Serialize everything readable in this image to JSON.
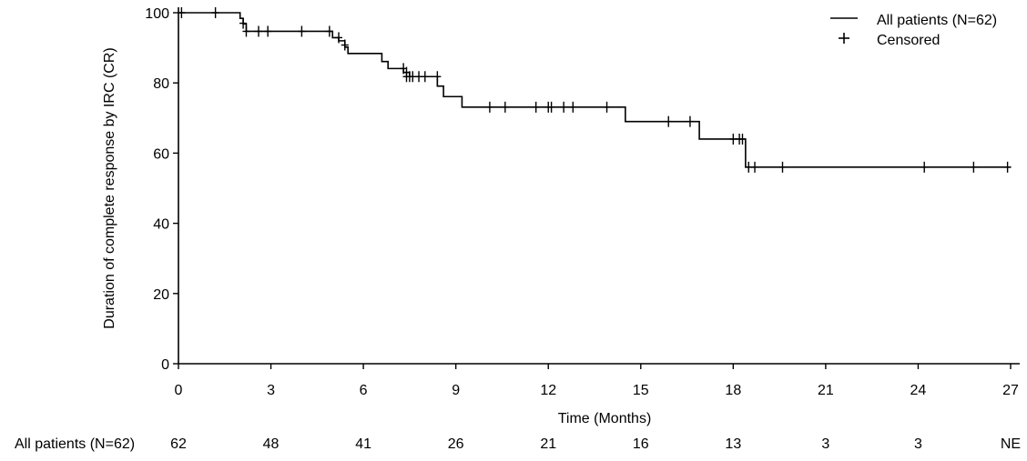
{
  "chart_data": {
    "type": "line",
    "subtype": "kaplan-meier",
    "title": "",
    "xlabel": "Time (Months)",
    "ylabel": "Duration of complete response by IRC (CR)",
    "xlim": [
      0,
      27
    ],
    "ylim": [
      0,
      100
    ],
    "xticks": [
      "0",
      "3",
      "6",
      "9",
      "12",
      "15",
      "18",
      "21",
      "24",
      "27"
    ],
    "yticks": [
      "0",
      "20",
      "40",
      "60",
      "80",
      "100"
    ],
    "grid": false,
    "legend": {
      "placement": "top-right",
      "entries": [
        {
          "label": "All patients (N=62)",
          "marker": "line"
        },
        {
          "label": "Censored",
          "marker": "plus"
        }
      ]
    },
    "series": [
      {
        "name": "All patients (N=62)",
        "steps": [
          [
            0,
            100
          ],
          [
            2.0,
            98.4
          ],
          [
            2.1,
            96.8
          ],
          [
            2.2,
            94.7
          ],
          [
            4.9,
            94.7
          ],
          [
            5.0,
            92.9
          ],
          [
            5.2,
            92.0
          ],
          [
            5.4,
            90.2
          ],
          [
            5.5,
            88.4
          ],
          [
            6.6,
            86.1
          ],
          [
            6.8,
            84.1
          ],
          [
            7.3,
            83.0
          ],
          [
            7.5,
            81.8
          ],
          [
            8.4,
            79.1
          ],
          [
            8.6,
            76.1
          ],
          [
            9.2,
            73.1
          ],
          [
            14.5,
            69.0
          ],
          [
            16.9,
            64.0
          ],
          [
            18.4,
            56.0
          ],
          [
            27.0,
            56.0
          ]
        ],
        "censored": [
          [
            0.1,
            100
          ],
          [
            1.2,
            100
          ],
          [
            2.1,
            97.0
          ],
          [
            2.2,
            94.7
          ],
          [
            2.6,
            94.7
          ],
          [
            2.9,
            94.7
          ],
          [
            4.0,
            94.7
          ],
          [
            4.9,
            94.7
          ],
          [
            5.2,
            92.9
          ],
          [
            5.4,
            90.8
          ],
          [
            7.3,
            84.1
          ],
          [
            7.4,
            83.0
          ],
          [
            7.4,
            81.8
          ],
          [
            7.5,
            81.8
          ],
          [
            7.6,
            81.8
          ],
          [
            7.8,
            81.8
          ],
          [
            8.0,
            81.8
          ],
          [
            8.4,
            81.8
          ],
          [
            10.1,
            73.1
          ],
          [
            10.6,
            73.1
          ],
          [
            11.6,
            73.1
          ],
          [
            12.0,
            73.1
          ],
          [
            12.1,
            73.1
          ],
          [
            12.5,
            73.1
          ],
          [
            12.8,
            73.1
          ],
          [
            13.9,
            73.1
          ],
          [
            15.9,
            69.0
          ],
          [
            16.6,
            69.0
          ],
          [
            18.0,
            64.0
          ],
          [
            18.2,
            64.0
          ],
          [
            18.3,
            64.0
          ],
          [
            18.5,
            56.0
          ],
          [
            18.7,
            56.0
          ],
          [
            19.6,
            56.0
          ],
          [
            24.2,
            56.0
          ],
          [
            25.8,
            56.0
          ],
          [
            26.9,
            56.0
          ]
        ]
      }
    ],
    "risk_table": {
      "label": "All patients (N=62)",
      "values": [
        "62",
        "48",
        "41",
        "26",
        "21",
        "16",
        "13",
        "3",
        "3",
        "NE"
      ]
    }
  }
}
